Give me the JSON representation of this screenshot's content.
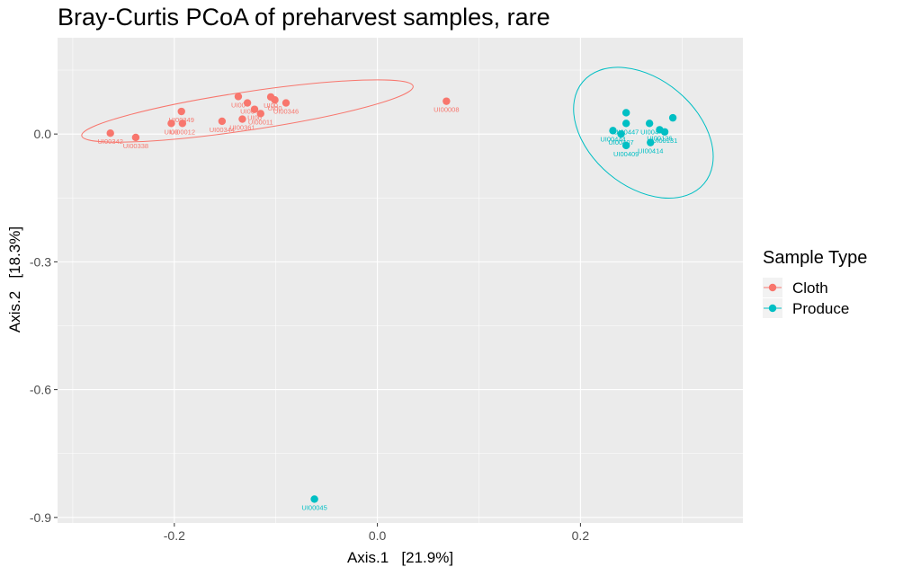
{
  "chart_data": {
    "type": "scatter",
    "title": "Bray-Curtis PCoA of preharvest samples, rare",
    "xlabel": "Axis.1   [21.9%]",
    "ylabel": "Axis.2   [18.3%]",
    "xlim": [
      -0.315,
      0.36
    ],
    "ylim": [
      -0.913,
      0.226
    ],
    "x_ticks": [
      -0.2,
      0.0,
      0.2
    ],
    "x_tick_labels": [
      "-0.2",
      "0.0",
      "0.2"
    ],
    "y_ticks": [
      0.0,
      -0.3,
      -0.6,
      -0.9
    ],
    "y_tick_labels": [
      "0.0",
      "-0.3",
      "-0.6",
      "-0.9"
    ],
    "grid": true,
    "background": "#ebebeb",
    "legend": {
      "title": "Sample Type",
      "position": "right",
      "entries": [
        {
          "label": "Cloth",
          "color": "#F8766D"
        },
        {
          "label": "Produce",
          "color": "#00BFC4"
        }
      ]
    },
    "series": [
      {
        "name": "Cloth",
        "color": "#F8766D",
        "points": [
          {
            "x": -0.263,
            "y": 0.002,
            "label": "UI00342"
          },
          {
            "x": -0.238,
            "y": -0.008,
            "label": "UI00338"
          },
          {
            "x": -0.193,
            "y": 0.053,
            "label": "UI00349"
          },
          {
            "x": -0.203,
            "y": 0.025,
            "label": "UI00"
          },
          {
            "x": -0.192,
            "y": 0.025,
            "label": "UI00012"
          },
          {
            "x": -0.153,
            "y": 0.03,
            "label": "UI00344"
          },
          {
            "x": -0.137,
            "y": 0.088,
            "label": "UI00"
          },
          {
            "x": -0.128,
            "y": 0.073,
            "label": "UI00"
          },
          {
            "x": -0.133,
            "y": 0.035,
            "label": "UI00361"
          },
          {
            "x": -0.121,
            "y": 0.058,
            "label": "UI00"
          },
          {
            "x": -0.115,
            "y": 0.048,
            "label": "UI00011"
          },
          {
            "x": -0.105,
            "y": 0.087,
            "label": "UI00"
          },
          {
            "x": -0.101,
            "y": 0.08,
            "label": "UI00"
          },
          {
            "x": -0.09,
            "y": 0.073,
            "label": "UI00346"
          },
          {
            "x": 0.068,
            "y": 0.077,
            "label": "UI00008"
          }
        ],
        "ellipse": {
          "cx": -0.128,
          "cy": 0.054,
          "rx": 0.165,
          "ry": 0.045,
          "rotate_deg": -8.5
        }
      },
      {
        "name": "Produce",
        "color": "#00BFC4",
        "points": [
          {
            "x": 0.245,
            "y": 0.05,
            "label": ""
          },
          {
            "x": 0.245,
            "y": 0.025,
            "label": "UI00447"
          },
          {
            "x": 0.232,
            "y": 0.008,
            "label": "UI00444"
          },
          {
            "x": 0.268,
            "y": 0.025,
            "label": "UI004"
          },
          {
            "x": 0.278,
            "y": 0.01,
            "label": "UI00126"
          },
          {
            "x": 0.291,
            "y": 0.038,
            "label": ""
          },
          {
            "x": 0.245,
            "y": -0.027,
            "label": "UI00409"
          },
          {
            "x": 0.269,
            "y": -0.02,
            "label": "UI00414"
          },
          {
            "x": 0.24,
            "y": 0.0,
            "label": "UI00407"
          },
          {
            "x": 0.283,
            "y": 0.005,
            "label": "UI00131"
          },
          {
            "x": -0.062,
            "y": -0.857,
            "label": "UI00045"
          }
        ],
        "ellipse": {
          "cx": 0.262,
          "cy": 0.003,
          "rx": 0.078,
          "ry": 0.126,
          "rotate_deg": 40
        }
      }
    ]
  }
}
